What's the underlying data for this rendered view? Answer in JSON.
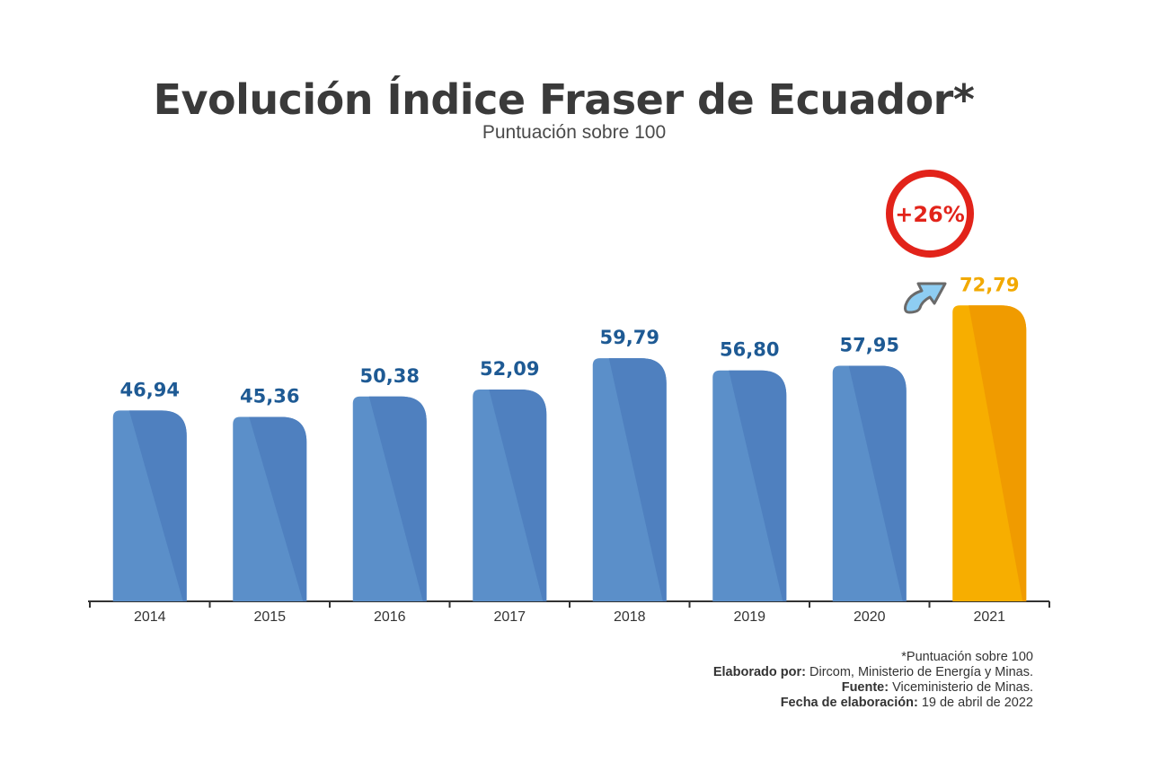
{
  "chart_data": {
    "type": "bar",
    "title": "Evolución Índice Fraser de Ecuador*",
    "subtitle": "Puntuación sobre 100",
    "categories": [
      "2014",
      "2015",
      "2016",
      "2017",
      "2018",
      "2019",
      "2020",
      "2021"
    ],
    "values": [
      46.94,
      45.36,
      50.38,
      52.09,
      59.79,
      56.8,
      57.95,
      72.79
    ],
    "value_labels": [
      "46,94",
      "45,36",
      "50,38",
      "52,09",
      "59,79",
      "56,80",
      "57,95",
      "72,79"
    ],
    "highlight_index": 7,
    "ylim": [
      0,
      100
    ],
    "xlabel": "",
    "ylabel": "",
    "annotation": "+26%",
    "colors": {
      "bar": "#5b8fc9",
      "bar_shade": "#4f80bf",
      "highlight": "#f7ae00",
      "highlight_shade": "#f09b00",
      "value_label": "#1e5a94",
      "highlight_label": "#f2a900",
      "annotation_ring": "#e2231a",
      "arrow": "#8ecdf2",
      "axis": "#333333"
    }
  },
  "footer": {
    "note": "*Puntuación sobre 100",
    "elaborated_label": "Elaborado por:",
    "elaborated_value": " Dircom, Ministerio de Energía y Minas.",
    "source_label": "Fuente:",
    "source_value": " Viceministerio de Minas.",
    "date_label": "Fecha de elaboración:",
    "date_value": " 19 de abril de 2022"
  }
}
